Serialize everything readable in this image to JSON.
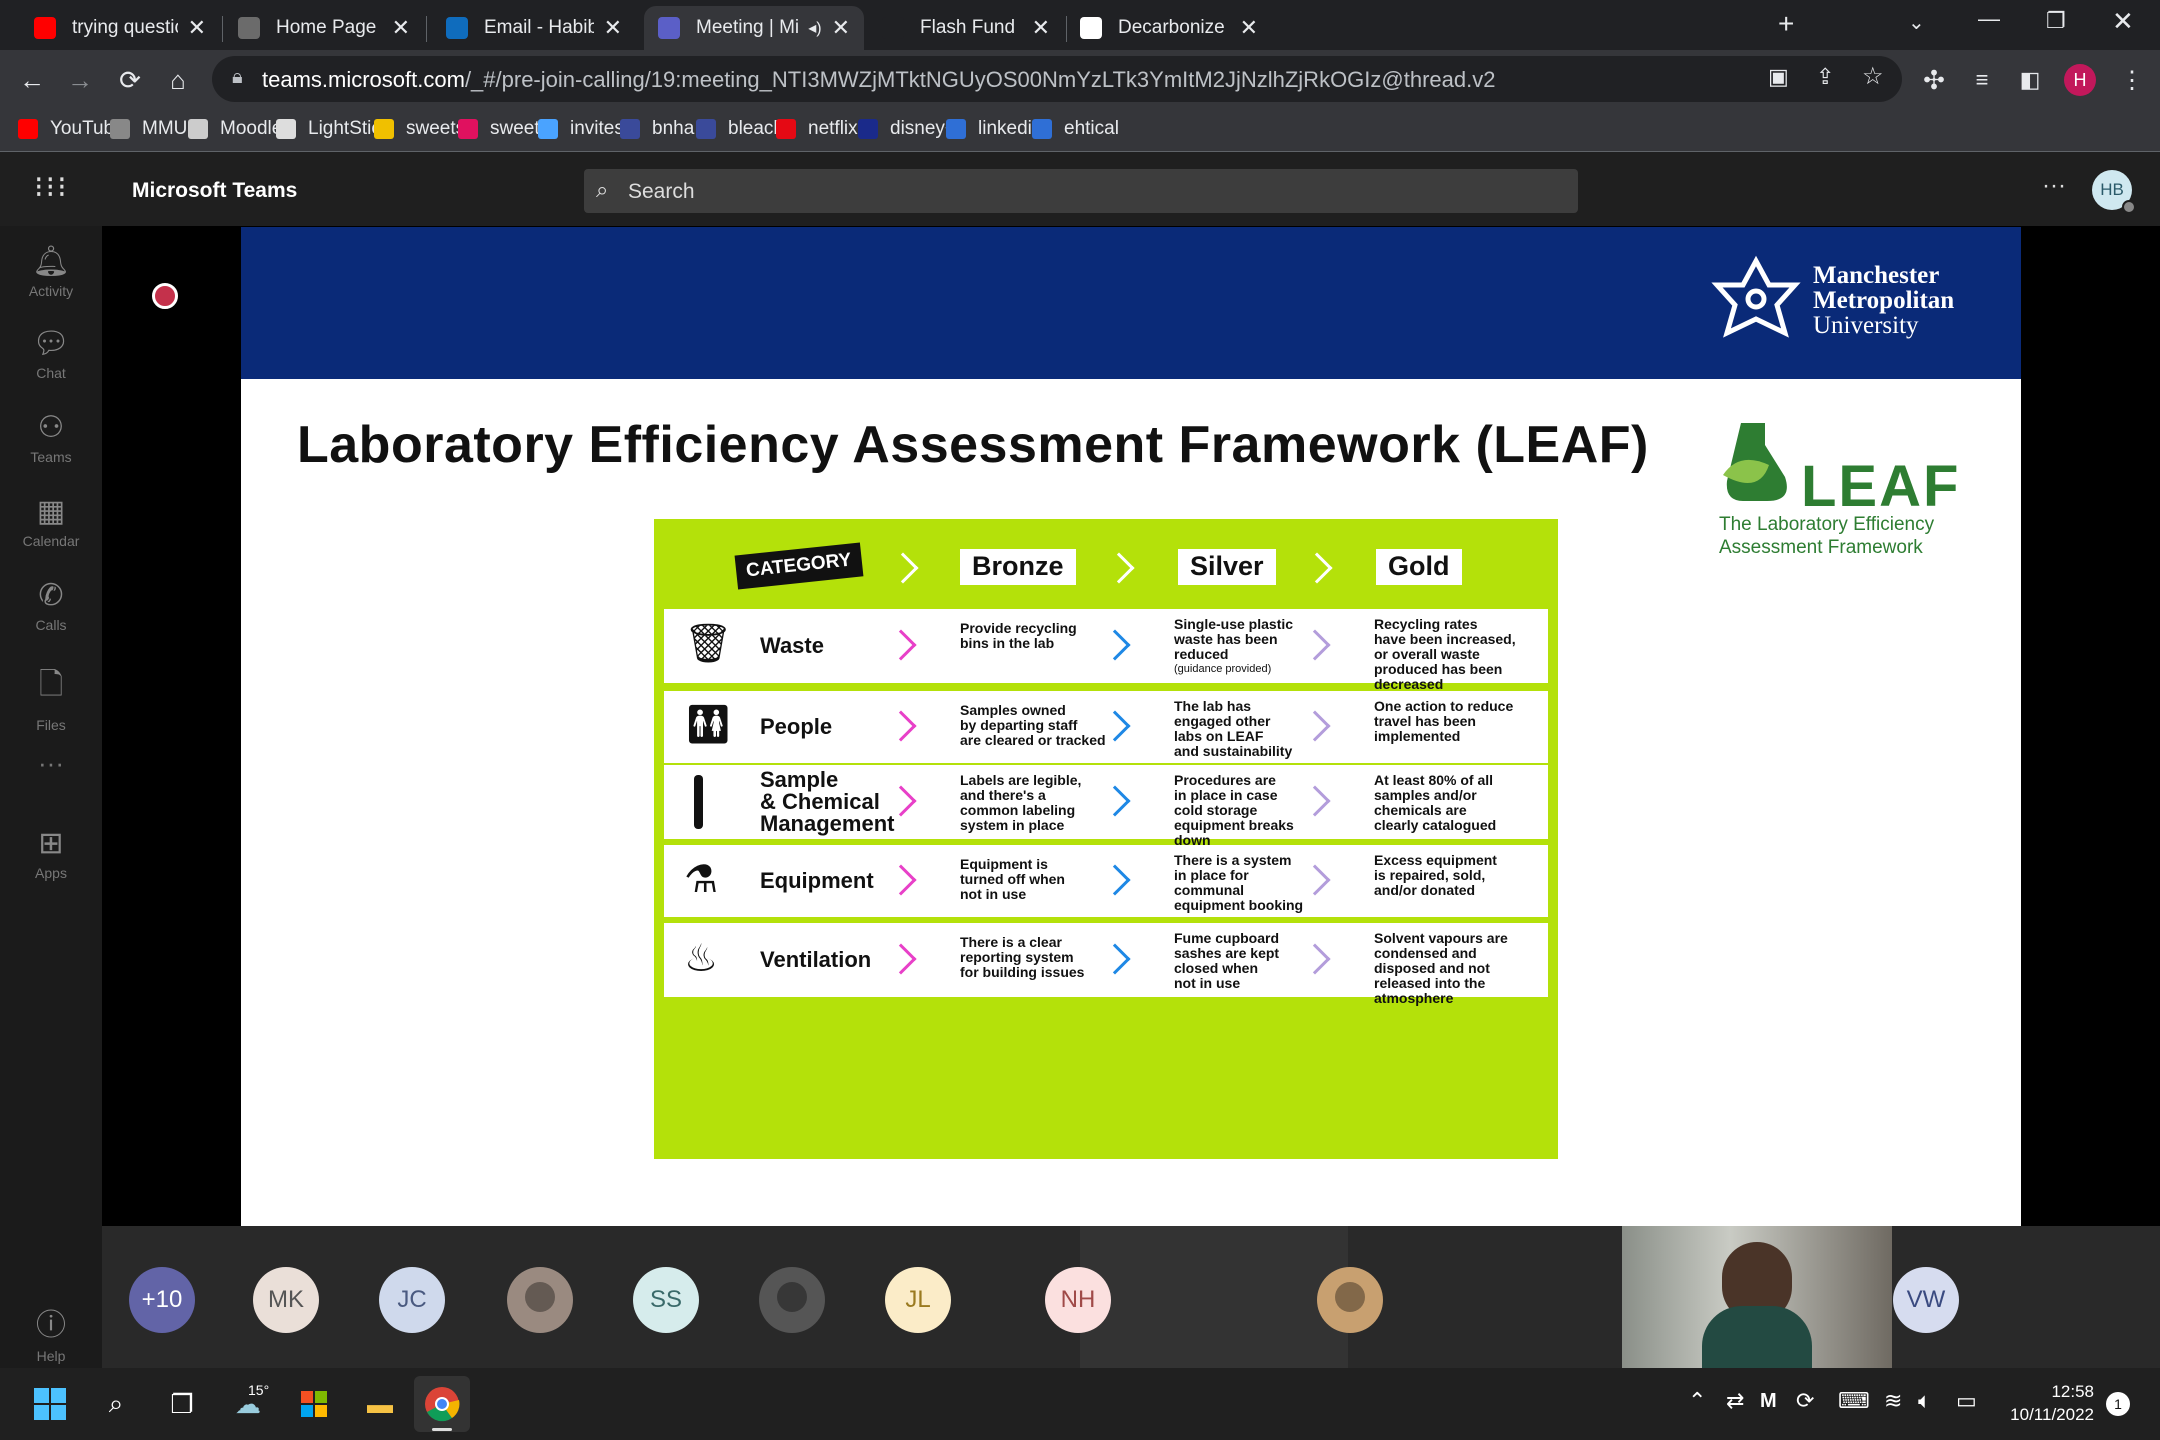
{
  "browser": {
    "tabs": [
      {
        "title": "trying questionable mak",
        "icon": "youtube-icon",
        "color": "#ff0000"
      },
      {
        "title": "Home Page - MyMMU",
        "icon": "mmu-icon",
        "color": "#6b6b6b"
      },
      {
        "title": "Email - Habiba Begum -",
        "icon": "outlook-icon",
        "color": "#0f6cbd"
      },
      {
        "title": "Meeting | Microsoft",
        "icon": "teams-icon",
        "color": "#5b5fc7"
      },
      {
        "title": "Flash Fund | Manchester",
        "icon": "mmu-icon",
        "color": "#202124"
      },
      {
        "title": "Decarbonize Software | (",
        "icon": "hexagon-icon",
        "color": "#ffffff"
      }
    ],
    "url_host": "teams.microsoft.com",
    "url_path": "/_#/pre-join-calling/19:meeting_NTI3MWZjMTktNGUyOS00NmYzLTk3YmItM2JjNzlhZjRkOGIz@thread.v2",
    "profile_initial": "H",
    "bookmarks": [
      {
        "label": "YouTube",
        "icon": "youtube-icon",
        "color": "#ff0000"
      },
      {
        "label": "MMU",
        "icon": "mmu-icon",
        "color": "#888888"
      },
      {
        "label": "Moodle",
        "icon": "moodle-icon",
        "color": "#cccccc"
      },
      {
        "label": "LightStick",
        "icon": "lightstick-icon",
        "color": "#dddddd"
      },
      {
        "label": "sweets",
        "icon": "sweets-icon",
        "color": "#f0c000"
      },
      {
        "label": "sweets",
        "icon": "m-icon",
        "color": "#e0115f"
      },
      {
        "label": "invites",
        "icon": "invites-icon",
        "color": "#4aa3ff"
      },
      {
        "label": "bnha",
        "icon": "bnha-icon",
        "color": "#3a4a9a"
      },
      {
        "label": "bleach",
        "icon": "bleach-icon",
        "color": "#3a4a9a"
      },
      {
        "label": "netflix",
        "icon": "netflix-icon",
        "color": "#e50914"
      },
      {
        "label": "disney+",
        "icon": "disney-icon",
        "color": "#1a2a8a"
      },
      {
        "label": "linkedin",
        "icon": "play-icon",
        "color": "#2f6fd6"
      },
      {
        "label": "ehtical",
        "icon": "play-icon",
        "color": "#2f6fd6"
      }
    ]
  },
  "teams": {
    "app_name": "Microsoft Teams",
    "search_placeholder": "Search",
    "user_initials": "HB",
    "rail": [
      {
        "label": "Activity",
        "icon": "bell-icon"
      },
      {
        "label": "Chat",
        "icon": "chat-icon"
      },
      {
        "label": "Teams",
        "icon": "teams-icon"
      },
      {
        "label": "Calendar",
        "icon": "calendar-icon"
      },
      {
        "label": "Calls",
        "icon": "phone-icon"
      },
      {
        "label": "Files",
        "icon": "file-icon"
      },
      {
        "label": "Apps",
        "icon": "apps-icon"
      },
      {
        "label": "Help",
        "icon": "help-icon"
      }
    ]
  },
  "slide": {
    "university": [
      "Manchester",
      "Metropolitan",
      "University"
    ],
    "title": "Laboratory Efficiency Assessment Framework (LEAF)",
    "leaf_logo": "LEAF",
    "leaf_tagline": [
      "The Laboratory Efficiency",
      "Assessment Framework"
    ],
    "header": {
      "category": "CATEGORY",
      "bronze": "Bronze",
      "silver": "Silver",
      "gold": "Gold"
    },
    "rows": [
      {
        "category": [
          "Waste"
        ],
        "icon": "trash-icon",
        "bronze": [
          "Provide recycling",
          "bins in the lab"
        ],
        "silver": [
          "Single-use plastic",
          "waste has been",
          "reduced",
          "(guidance provided)"
        ],
        "gold": [
          "Recycling rates",
          "have been increased,",
          "or overall waste",
          "produced has been",
          "decreased"
        ]
      },
      {
        "category": [
          "People"
        ],
        "icon": "people-icon",
        "bronze": [
          "Samples owned",
          "by departing staff",
          "are cleared or tracked"
        ],
        "silver": [
          "The lab has",
          "engaged other",
          "labs on LEAF",
          "and sustainability"
        ],
        "gold": [
          "One action to reduce",
          "travel has been",
          "implemented"
        ]
      },
      {
        "category": [
          "Sample",
          "& Chemical",
          "Management"
        ],
        "icon": "test-tube-icon",
        "bronze": [
          "Labels are legible,",
          "and there's a",
          "common labeling",
          "system in place"
        ],
        "silver": [
          "Procedures are",
          "in place in case",
          "cold storage",
          "equipment breaks",
          "down"
        ],
        "gold": [
          "At least 80% of all",
          "samples and/or",
          "chemicals are",
          "clearly catalogued"
        ]
      },
      {
        "category": [
          "Equipment"
        ],
        "icon": "flask-icon",
        "bronze": [
          "Equipment is",
          "turned off when",
          "not in use"
        ],
        "silver": [
          "There is a system",
          "in place for",
          "communal",
          "equipment booking"
        ],
        "gold": [
          "Excess equipment",
          "is repaired, sold,",
          "and/or donated"
        ]
      },
      {
        "category": [
          "Ventilation"
        ],
        "icon": "ventilation-icon",
        "bronze": [
          "There is a clear",
          "reporting system",
          "for building issues"
        ],
        "silver": [
          "Fume cupboard",
          "sashes are kept",
          "closed when",
          "not in use"
        ],
        "gold": [
          "Solvent vapours are",
          "condensed and",
          "disposed and not",
          "released into the",
          "atmosphere"
        ]
      }
    ]
  },
  "participants": [
    {
      "initials": "+10",
      "bg": "#6264a7",
      "fg": "#ffffff"
    },
    {
      "initials": "MK",
      "bg": "#eadfd8",
      "fg": "#555555"
    },
    {
      "initials": "JC",
      "bg": "#cfd9ec",
      "fg": "#4a5a80"
    },
    {
      "initials": "",
      "bg": "#9a8a80",
      "fg": "#ffffff",
      "photo": true
    },
    {
      "initials": "SS",
      "bg": "#d6ecec",
      "fg": "#3a6a6a"
    },
    {
      "initials": "",
      "bg": "#555555",
      "fg": "#ffffff",
      "photo": true
    },
    {
      "initials": "JL",
      "bg": "#fbecc8",
      "fg": "#9a7a20"
    },
    {
      "initials": "NH",
      "bg": "#fbe0df",
      "fg": "#a04a48"
    },
    {
      "initials": "",
      "bg": "#c8a070",
      "fg": "#ffffff",
      "photo": true
    },
    {
      "initials": "VW",
      "bg": "#d6dcef",
      "fg": "#3a4a80"
    }
  ],
  "taskbar": {
    "weather": "15°",
    "time": "12:58",
    "date": "10/11/2022",
    "notifications": "1"
  }
}
